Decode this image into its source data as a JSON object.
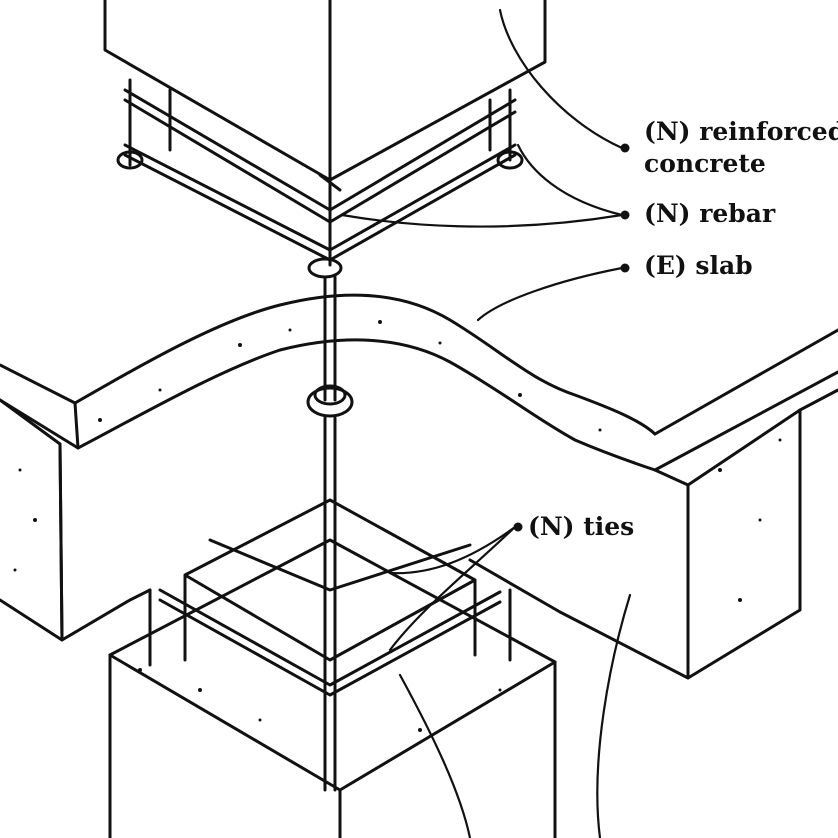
{
  "labels": {
    "reinforced_concrete_line1": "(N) reinforced",
    "reinforced_concrete_line2": "concrete",
    "rebar": "(N) rebar",
    "slab": "(E) slab",
    "ties": "(N) ties"
  },
  "colors": {
    "ink": "#111111",
    "paper": "#ffffff"
  }
}
